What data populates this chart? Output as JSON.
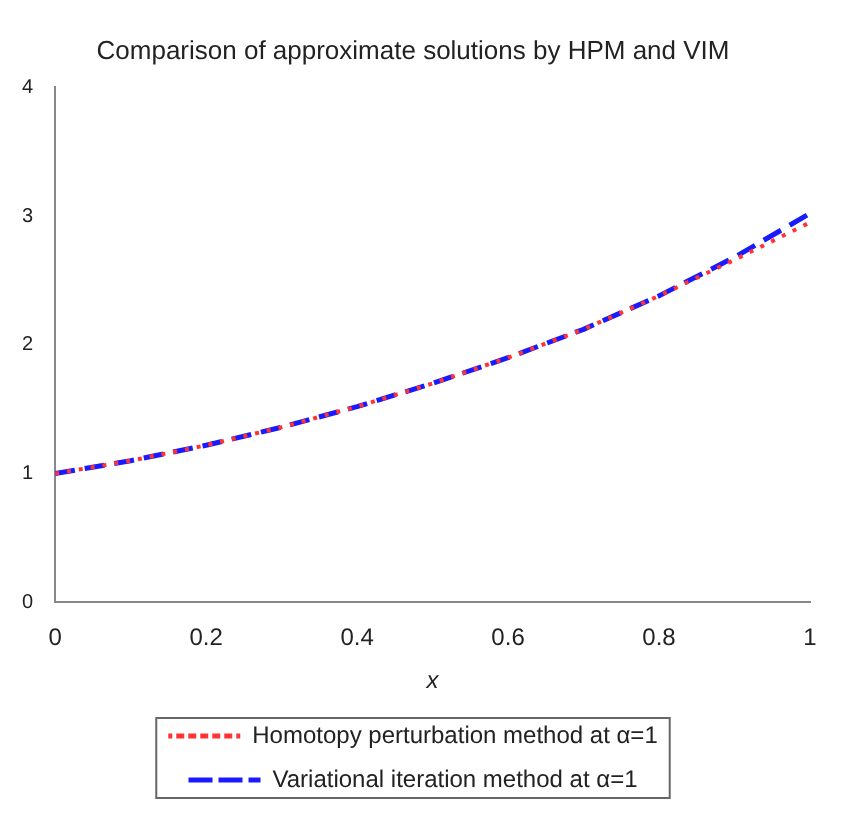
{
  "chart_data": {
    "type": "line",
    "title": "Comparison of approximate solutions by HPM and VIM",
    "xlabel": "x",
    "x": [
      0,
      0.1,
      0.2,
      0.3,
      0.4,
      0.5,
      0.6,
      0.7,
      0.8,
      0.9,
      1
    ],
    "series": [
      {
        "name": "Homotopy perturbation method at α=1",
        "color": "#ff3333",
        "line_style": "dotted",
        "values": [
          1,
          1.1,
          1.22,
          1.36,
          1.52,
          1.7,
          1.9,
          2.12,
          2.38,
          2.66,
          2.95
        ]
      },
      {
        "name": "Variational iteration method at α=1",
        "color": "#1a1aff",
        "line_style": "dashed",
        "values": [
          1,
          1.1,
          1.22,
          1.36,
          1.52,
          1.7,
          1.9,
          2.12,
          2.38,
          2.68,
          3.02
        ]
      }
    ],
    "xlim": [
      0,
      1
    ],
    "xticks": [
      0,
      0.2,
      0.4,
      0.6,
      0.8,
      1
    ],
    "ylim": [
      0,
      4
    ],
    "yticks": [
      0,
      1,
      2,
      3,
      4
    ],
    "grid": false,
    "legend": "bottom",
    "marker": "none"
  }
}
